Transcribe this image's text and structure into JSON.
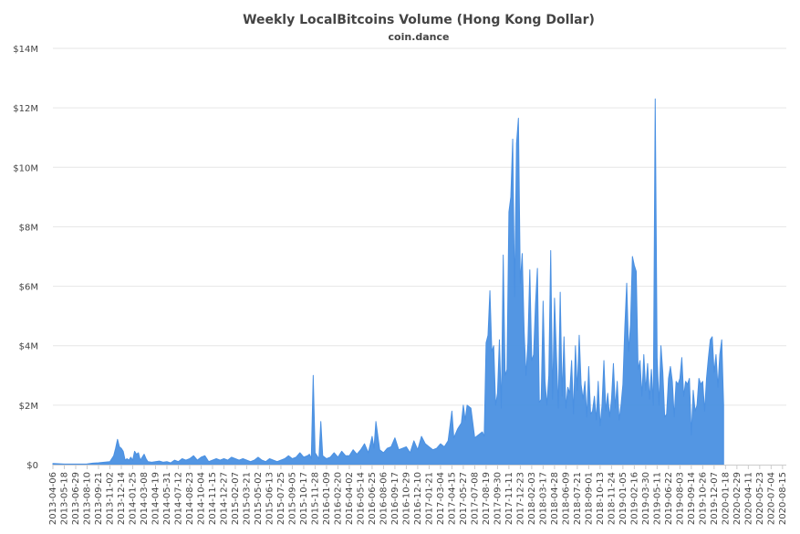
{
  "chart_data": {
    "type": "area",
    "title": "Weekly LocalBitcoins Volume (Hong Kong Dollar)",
    "subtitle": "coin.dance",
    "xlabel": "",
    "ylabel": "",
    "ylim": [
      0,
      14000000
    ],
    "yticks": [
      {
        "value": 0,
        "label": "$0"
      },
      {
        "value": 2000000,
        "label": "$2M"
      },
      {
        "value": 4000000,
        "label": "$4M"
      },
      {
        "value": 6000000,
        "label": "$6M"
      },
      {
        "value": 8000000,
        "label": "$8M"
      },
      {
        "value": 10000000,
        "label": "$10M"
      },
      {
        "value": 12000000,
        "label": "$12M"
      },
      {
        "value": 14000000,
        "label": "$14M"
      }
    ],
    "grid": true,
    "legend": "none",
    "x_tick_labels": [
      "2013-04-06",
      "2013-05-18",
      "2013-06-29",
      "2013-08-10",
      "2013-09-21",
      "2013-11-02",
      "2013-12-14",
      "2014-01-25",
      "2014-03-08",
      "2014-04-19",
      "2014-05-31",
      "2014-07-12",
      "2014-08-23",
      "2014-10-04",
      "2014-11-15",
      "2014-12-27",
      "2015-02-07",
      "2015-03-21",
      "2015-05-02",
      "2015-06-13",
      "2015-07-25",
      "2015-09-05",
      "2015-10-17",
      "2015-11-28",
      "2016-01-09",
      "2016-02-20",
      "2016-04-02",
      "2016-05-14",
      "2016-06-25",
      "2016-08-06",
      "2016-09-17",
      "2016-10-29",
      "2016-12-10",
      "2017-01-21",
      "2017-03-04",
      "2017-04-15",
      "2017-05-27",
      "2017-07-08",
      "2017-08-19",
      "2017-09-30",
      "2017-11-11",
      "2017-12-23",
      "2018-02-03",
      "2018-03-17",
      "2018-04-28",
      "2018-06-09",
      "2018-07-21",
      "2018-09-01",
      "2018-10-13",
      "2018-11-24",
      "2019-01-05",
      "2019-02-16",
      "2019-03-30",
      "2019-05-11",
      "2019-06-22",
      "2019-08-03",
      "2019-09-14",
      "2019-10-26",
      "2019-12-07",
      "2020-01-18",
      "2020-02-29",
      "2020-04-11",
      "2020-05-23",
      "2020-07-04",
      "2020-08-15"
    ],
    "x_start": "2013-04-06",
    "x_end": "2020-08-29",
    "series": [
      {
        "color": "#4a90e2",
        "points": [
          [
            "2013-04-06",
            40000
          ],
          [
            "2013-05-18",
            20000
          ],
          [
            "2013-06-29",
            20000
          ],
          [
            "2013-08-10",
            25000
          ],
          [
            "2013-08-31",
            50000
          ],
          [
            "2013-09-21",
            60000
          ],
          [
            "2013-10-12",
            80000
          ],
          [
            "2013-11-02",
            100000
          ],
          [
            "2013-11-16",
            300000
          ],
          [
            "2013-11-23",
            550000
          ],
          [
            "2013-11-30",
            850000
          ],
          [
            "2013-12-07",
            600000
          ],
          [
            "2013-12-14",
            550000
          ],
          [
            "2013-12-21",
            450000
          ],
          [
            "2013-12-28",
            150000
          ],
          [
            "2014-01-04",
            200000
          ],
          [
            "2014-01-11",
            150000
          ],
          [
            "2014-01-18",
            250000
          ],
          [
            "2014-01-25",
            150000
          ],
          [
            "2014-02-01",
            450000
          ],
          [
            "2014-02-08",
            350000
          ],
          [
            "2014-02-15",
            400000
          ],
          [
            "2014-02-22",
            150000
          ],
          [
            "2014-03-01",
            250000
          ],
          [
            "2014-03-08",
            350000
          ],
          [
            "2014-03-15",
            200000
          ],
          [
            "2014-03-22",
            100000
          ],
          [
            "2014-04-05",
            80000
          ],
          [
            "2014-04-19",
            100000
          ],
          [
            "2014-05-03",
            120000
          ],
          [
            "2014-05-17",
            80000
          ],
          [
            "2014-05-31",
            100000
          ],
          [
            "2014-06-14",
            60000
          ],
          [
            "2014-06-28",
            150000
          ],
          [
            "2014-07-12",
            100000
          ],
          [
            "2014-07-26",
            200000
          ],
          [
            "2014-08-09",
            150000
          ],
          [
            "2014-08-23",
            200000
          ],
          [
            "2014-09-06",
            300000
          ],
          [
            "2014-09-20",
            150000
          ],
          [
            "2014-10-04",
            250000
          ],
          [
            "2014-10-18",
            300000
          ],
          [
            "2014-11-01",
            100000
          ],
          [
            "2014-11-15",
            150000
          ],
          [
            "2014-11-29",
            200000
          ],
          [
            "2014-12-13",
            150000
          ],
          [
            "2014-12-27",
            200000
          ],
          [
            "2015-01-10",
            150000
          ],
          [
            "2015-01-24",
            250000
          ],
          [
            "2015-02-07",
            200000
          ],
          [
            "2015-02-21",
            150000
          ],
          [
            "2015-03-07",
            200000
          ],
          [
            "2015-03-21",
            150000
          ],
          [
            "2015-04-04",
            100000
          ],
          [
            "2015-04-18",
            150000
          ],
          [
            "2015-05-02",
            250000
          ],
          [
            "2015-05-16",
            150000
          ],
          [
            "2015-05-30",
            100000
          ],
          [
            "2015-06-13",
            200000
          ],
          [
            "2015-06-27",
            150000
          ],
          [
            "2015-07-11",
            100000
          ],
          [
            "2015-07-25",
            150000
          ],
          [
            "2015-08-08",
            200000
          ],
          [
            "2015-08-22",
            300000
          ],
          [
            "2015-09-05",
            200000
          ],
          [
            "2015-09-19",
            250000
          ],
          [
            "2015-10-03",
            400000
          ],
          [
            "2015-10-17",
            250000
          ],
          [
            "2015-10-31",
            300000
          ],
          [
            "2015-11-07",
            350000
          ],
          [
            "2015-11-14",
            200000
          ],
          [
            "2015-11-21",
            3000000
          ],
          [
            "2015-11-28",
            400000
          ],
          [
            "2015-12-05",
            300000
          ],
          [
            "2015-12-12",
            200000
          ],
          [
            "2015-12-19",
            1450000
          ],
          [
            "2015-12-26",
            300000
          ],
          [
            "2016-01-09",
            200000
          ],
          [
            "2016-01-23",
            250000
          ],
          [
            "2016-02-06",
            400000
          ],
          [
            "2016-02-20",
            250000
          ],
          [
            "2016-03-05",
            450000
          ],
          [
            "2016-03-19",
            300000
          ],
          [
            "2016-04-02",
            300000
          ],
          [
            "2016-04-16",
            500000
          ],
          [
            "2016-04-30",
            350000
          ],
          [
            "2016-05-14",
            500000
          ],
          [
            "2016-05-28",
            700000
          ],
          [
            "2016-06-11",
            400000
          ],
          [
            "2016-06-25",
            950000
          ],
          [
            "2016-07-02",
            550000
          ],
          [
            "2016-07-09",
            1450000
          ],
          [
            "2016-07-23",
            500000
          ],
          [
            "2016-08-06",
            400000
          ],
          [
            "2016-08-20",
            550000
          ],
          [
            "2016-09-03",
            600000
          ],
          [
            "2016-09-17",
            900000
          ],
          [
            "2016-10-01",
            500000
          ],
          [
            "2016-10-15",
            550000
          ],
          [
            "2016-10-29",
            600000
          ],
          [
            "2016-11-12",
            400000
          ],
          [
            "2016-11-26",
            800000
          ],
          [
            "2016-12-10",
            500000
          ],
          [
            "2016-12-24",
            950000
          ],
          [
            "2017-01-07",
            700000
          ],
          [
            "2017-01-21",
            600000
          ],
          [
            "2017-02-04",
            500000
          ],
          [
            "2017-02-18",
            550000
          ],
          [
            "2017-03-04",
            700000
          ],
          [
            "2017-03-18",
            600000
          ],
          [
            "2017-04-01",
            800000
          ],
          [
            "2017-04-15",
            1800000
          ],
          [
            "2017-04-22",
            900000
          ],
          [
            "2017-05-06",
            1200000
          ],
          [
            "2017-05-20",
            1400000
          ],
          [
            "2017-05-27",
            2000000
          ],
          [
            "2017-06-03",
            1500000
          ],
          [
            "2017-06-10",
            2000000
          ],
          [
            "2017-06-24",
            1900000
          ],
          [
            "2017-07-08",
            900000
          ],
          [
            "2017-07-22",
            1000000
          ],
          [
            "2017-08-05",
            1100000
          ],
          [
            "2017-08-12",
            950000
          ],
          [
            "2017-08-19",
            4100000
          ],
          [
            "2017-08-26",
            4350000
          ],
          [
            "2017-09-02",
            5850000
          ],
          [
            "2017-09-09",
            3800000
          ],
          [
            "2017-09-16",
            4000000
          ],
          [
            "2017-09-23",
            2000000
          ],
          [
            "2017-09-30",
            2400000
          ],
          [
            "2017-10-07",
            4200000
          ],
          [
            "2017-10-14",
            1900000
          ],
          [
            "2017-10-21",
            7050000
          ],
          [
            "2017-10-28",
            3000000
          ],
          [
            "2017-11-04",
            3200000
          ],
          [
            "2017-11-11",
            8500000
          ],
          [
            "2017-11-18",
            9000000
          ],
          [
            "2017-11-25",
            10950000
          ],
          [
            "2017-12-02",
            5650000
          ],
          [
            "2017-12-09",
            10800000
          ],
          [
            "2017-12-16",
            11650000
          ],
          [
            "2017-12-23",
            6100000
          ],
          [
            "2017-12-30",
            7100000
          ],
          [
            "2018-01-06",
            4500000
          ],
          [
            "2018-01-13",
            3000000
          ],
          [
            "2018-01-20",
            4100000
          ],
          [
            "2018-01-27",
            6550000
          ],
          [
            "2018-02-03",
            3500000
          ],
          [
            "2018-02-10",
            3700000
          ],
          [
            "2018-02-17",
            5400000
          ],
          [
            "2018-02-24",
            6600000
          ],
          [
            "2018-03-03",
            2100000
          ],
          [
            "2018-03-10",
            2200000
          ],
          [
            "2018-03-17",
            5500000
          ],
          [
            "2018-03-24",
            2800000
          ],
          [
            "2018-03-31",
            2000000
          ],
          [
            "2018-04-07",
            3000000
          ],
          [
            "2018-04-14",
            7200000
          ],
          [
            "2018-04-21",
            2200000
          ],
          [
            "2018-04-28",
            5600000
          ],
          [
            "2018-05-05",
            3700000
          ],
          [
            "2018-05-12",
            1900000
          ],
          [
            "2018-05-19",
            5800000
          ],
          [
            "2018-05-26",
            2300000
          ],
          [
            "2018-06-02",
            4300000
          ],
          [
            "2018-06-09",
            1900000
          ],
          [
            "2018-06-16",
            2600000
          ],
          [
            "2018-06-23",
            2400000
          ],
          [
            "2018-06-30",
            3500000
          ],
          [
            "2018-07-07",
            1700000
          ],
          [
            "2018-07-14",
            4000000
          ],
          [
            "2018-07-21",
            2500000
          ],
          [
            "2018-07-28",
            4350000
          ],
          [
            "2018-08-04",
            2700000
          ],
          [
            "2018-08-11",
            2200000
          ],
          [
            "2018-08-18",
            2800000
          ],
          [
            "2018-08-25",
            1600000
          ],
          [
            "2018-09-01",
            3300000
          ],
          [
            "2018-09-08",
            1700000
          ],
          [
            "2018-09-15",
            1800000
          ],
          [
            "2018-09-22",
            2300000
          ],
          [
            "2018-09-29",
            1500000
          ],
          [
            "2018-10-06",
            2800000
          ],
          [
            "2018-10-13",
            1300000
          ],
          [
            "2018-10-20",
            2000000
          ],
          [
            "2018-10-27",
            3500000
          ],
          [
            "2018-11-03",
            1800000
          ],
          [
            "2018-11-10",
            2400000
          ],
          [
            "2018-11-17",
            1600000
          ],
          [
            "2018-11-24",
            2200000
          ],
          [
            "2018-12-01",
            3400000
          ],
          [
            "2018-12-08",
            1900000
          ],
          [
            "2018-12-15",
            2800000
          ],
          [
            "2018-12-22",
            1500000
          ],
          [
            "2018-12-29",
            2000000
          ],
          [
            "2019-01-05",
            2700000
          ],
          [
            "2019-01-12",
            4600000
          ],
          [
            "2019-01-19",
            6100000
          ],
          [
            "2019-01-26",
            3800000
          ],
          [
            "2019-02-02",
            4700000
          ],
          [
            "2019-02-09",
            7000000
          ],
          [
            "2019-02-16",
            6700000
          ],
          [
            "2019-02-23",
            6500000
          ],
          [
            "2019-03-02",
            3200000
          ],
          [
            "2019-03-09",
            3500000
          ],
          [
            "2019-03-16",
            2300000
          ],
          [
            "2019-03-23",
            3700000
          ],
          [
            "2019-03-30",
            2500000
          ],
          [
            "2019-04-06",
            3400000
          ],
          [
            "2019-04-13",
            2200000
          ],
          [
            "2019-04-20",
            3200000
          ],
          [
            "2019-04-27",
            2000000
          ],
          [
            "2019-05-04",
            12300000
          ],
          [
            "2019-05-11",
            3600000
          ],
          [
            "2019-05-18",
            2000000
          ],
          [
            "2019-05-25",
            4000000
          ],
          [
            "2019-06-01",
            3100000
          ],
          [
            "2019-06-08",
            1600000
          ],
          [
            "2019-06-15",
            1700000
          ],
          [
            "2019-06-22",
            2900000
          ],
          [
            "2019-06-29",
            3300000
          ],
          [
            "2019-07-06",
            2800000
          ],
          [
            "2019-07-13",
            1600000
          ],
          [
            "2019-07-20",
            2800000
          ],
          [
            "2019-07-27",
            2700000
          ],
          [
            "2019-08-03",
            2900000
          ],
          [
            "2019-08-10",
            3600000
          ],
          [
            "2019-08-17",
            2300000
          ],
          [
            "2019-08-24",
            2800000
          ],
          [
            "2019-08-31",
            2700000
          ],
          [
            "2019-09-07",
            2900000
          ],
          [
            "2019-09-14",
            1000000
          ],
          [
            "2019-09-21",
            2500000
          ],
          [
            "2019-09-28",
            1800000
          ],
          [
            "2019-10-05",
            2000000
          ],
          [
            "2019-10-12",
            2900000
          ],
          [
            "2019-10-19",
            2700000
          ],
          [
            "2019-10-26",
            2800000
          ],
          [
            "2019-11-02",
            1800000
          ],
          [
            "2019-11-09",
            2900000
          ],
          [
            "2019-11-16",
            3600000
          ],
          [
            "2019-11-23",
            4200000
          ],
          [
            "2019-11-30",
            4300000
          ],
          [
            "2019-12-07",
            3100000
          ],
          [
            "2019-12-14",
            3700000
          ],
          [
            "2019-12-21",
            2600000
          ],
          [
            "2019-12-28",
            3700000
          ],
          [
            "2020-01-04",
            4200000
          ],
          [
            "2020-01-11",
            2000000
          ]
        ]
      }
    ]
  }
}
